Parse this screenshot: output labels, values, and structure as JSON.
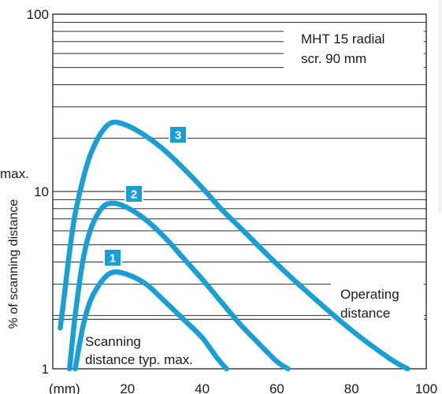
{
  "chart_data": {
    "type": "line",
    "title": "",
    "ylabel": "% of scanning distance",
    "xlabel": "",
    "x_unit_label": "(mm)",
    "xlim": [
      0,
      100
    ],
    "ylim": [
      1,
      100
    ],
    "y_scale": "log",
    "grid": true,
    "x_ticks": [
      20,
      40,
      60,
      80,
      100
    ],
    "y_ticks": [
      1,
      10,
      100
    ],
    "y_tick_labels": [
      "1",
      "10",
      "100"
    ],
    "operating_distance_y": 1.9,
    "left_cut_text": "max.",
    "legend_box": {
      "line1": "MHT 15 radial",
      "line2": "scr. 90 mm"
    },
    "annotations": {
      "operating_line1": "Operating",
      "operating_line2": "distance",
      "scanning_line1": "Scanning",
      "scanning_line2": "distance typ. max."
    },
    "series": [
      {
        "badge": "1",
        "color": "#1a9fd4",
        "x": [
          6,
          8,
          10,
          13,
          16,
          20,
          25,
          30,
          35,
          40,
          44,
          46.5
        ],
        "y": [
          1.0,
          1.7,
          2.4,
          3.1,
          3.5,
          3.4,
          3.0,
          2.4,
          1.9,
          1.5,
          1.15,
          1.0
        ]
      },
      {
        "badge": "2",
        "color": "#1a9fd4",
        "x": [
          4.5,
          6,
          8,
          10,
          13,
          16,
          20,
          25,
          30,
          35,
          40,
          45,
          50,
          55,
          60,
          63
        ],
        "y": [
          1.0,
          2.0,
          4.0,
          6.0,
          8.0,
          8.6,
          8.1,
          6.9,
          5.5,
          4.2,
          3.2,
          2.4,
          1.8,
          1.4,
          1.1,
          1.0
        ]
      },
      {
        "badge": "3",
        "color": "#1a9fd4",
        "x": [
          2,
          3,
          4,
          5,
          6,
          8,
          10,
          13,
          16,
          20,
          25,
          30,
          35,
          40,
          45,
          50,
          60,
          70,
          80,
          90,
          95
        ],
        "y": [
          1.7,
          2.5,
          3.8,
          5.5,
          7.5,
          11.5,
          16,
          21.5,
          24.5,
          23.5,
          20.5,
          17,
          13.5,
          10.5,
          8.0,
          6.3,
          3.9,
          2.5,
          1.65,
          1.15,
          1.0
        ]
      }
    ]
  },
  "colors": {
    "curve": "#1a9fd4",
    "badge_fill": "#1a9fd4",
    "grid": "#111111",
    "text": "#1a1a1a"
  }
}
